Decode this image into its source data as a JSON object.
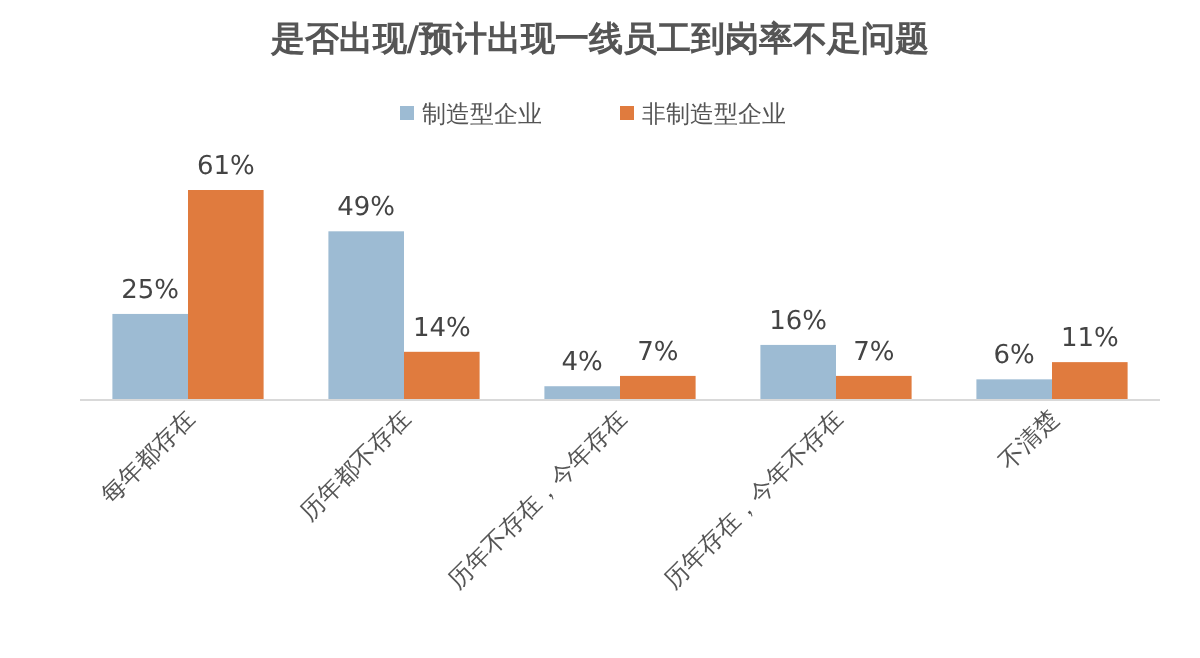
{
  "chart_data": {
    "type": "bar",
    "title": "是否出现/预计出现一线员工到岗率不足问题",
    "categories": [
      "每年都存在",
      "历年都不存在",
      "历年不存在，今年存在",
      "历年存在，今年不存在",
      "不清楚"
    ],
    "series": [
      {
        "name": "制造型企业",
        "color": "#9dbbd3",
        "values": [
          25,
          49,
          4,
          16,
          6
        ],
        "value_labels": [
          "25%",
          "49%",
          "4%",
          "16%",
          "6%"
        ]
      },
      {
        "name": "非制造型企业",
        "color": "#e07b3e",
        "values": [
          61,
          14,
          7,
          7,
          11
        ],
        "value_labels": [
          "61%",
          "14%",
          "7%",
          "7%",
          "11%"
        ]
      }
    ],
    "legend": "top"
  }
}
